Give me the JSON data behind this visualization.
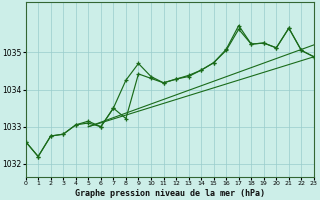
{
  "title": "Graphe pression niveau de la mer (hPa)",
  "background_color": "#cceee8",
  "grid_color": "#99cccc",
  "line_color": "#1a6b1a",
  "xlim": [
    0,
    23
  ],
  "ylim": [
    1031.65,
    1036.35
  ],
  "yticks": [
    1032,
    1033,
    1034,
    1035
  ],
  "xticks": [
    0,
    1,
    2,
    3,
    4,
    5,
    6,
    7,
    8,
    9,
    10,
    11,
    12,
    13,
    14,
    15,
    16,
    17,
    18,
    19,
    20,
    21,
    22,
    23
  ],
  "series1": [
    1032.6,
    1032.2,
    1032.75,
    1032.8,
    1033.05,
    1033.1,
    1033.0,
    1033.5,
    1034.25,
    1034.7,
    1034.35,
    1034.18,
    1034.28,
    1034.38,
    1034.52,
    1034.72,
    1035.08,
    1035.72,
    1035.22,
    1035.25,
    1035.12,
    1035.65,
    1035.05,
    1034.88
  ],
  "series2": [
    1032.6,
    1032.2,
    1032.75,
    1032.8,
    1033.05,
    1033.15,
    1033.0,
    1033.5,
    1033.22,
    1034.42,
    1034.3,
    1034.18,
    1034.28,
    1034.35,
    1034.52,
    1034.72,
    1035.05,
    1035.62,
    1035.22,
    1035.25,
    1035.12,
    1035.65,
    1035.05,
    1034.88
  ],
  "trend1_x": [
    5,
    23
  ],
  "trend1_y": [
    1033.0,
    1034.88
  ],
  "trend2_x": [
    5,
    23
  ],
  "trend2_y": [
    1033.0,
    1035.2
  ],
  "figwidth": 3.2,
  "figheight": 2.0,
  "dpi": 100
}
